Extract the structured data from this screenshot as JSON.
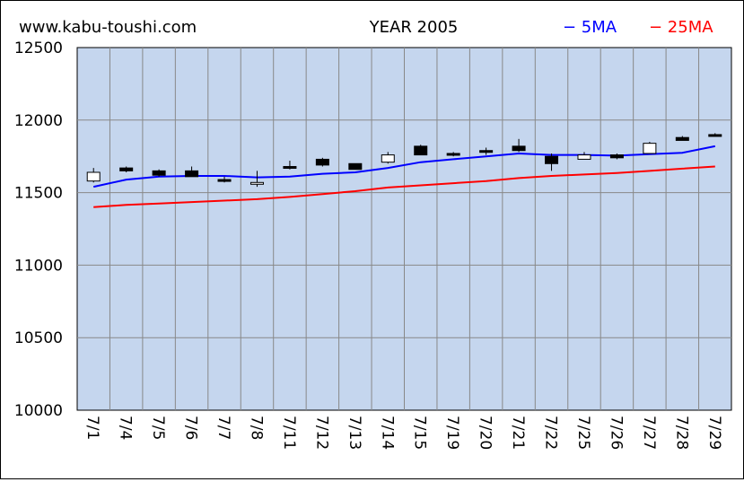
{
  "header": {
    "site": "www.kabu-toushi.com",
    "title": "YEAR 2005",
    "legend_5ma": "− 5MA",
    "legend_25ma": "− 25MA"
  },
  "colors": {
    "plot_bg": "#c5d6ee",
    "grid": "#888888",
    "ma5": "#0000ff",
    "ma25": "#ff0000",
    "up_candle": "#ffffff",
    "down_candle": "#000000"
  },
  "chart_data": {
    "type": "candlestick",
    "title": "YEAR 2005",
    "ylim": [
      10000,
      12500
    ],
    "yticks": [
      10000,
      10500,
      11000,
      11500,
      12000,
      12500
    ],
    "grid": true,
    "legend_placement": "top-right",
    "categories": [
      "7/1",
      "7/4",
      "7/5",
      "7/6",
      "7/7",
      "7/8",
      "7/11",
      "7/12",
      "7/13",
      "7/14",
      "7/15",
      "7/19",
      "7/20",
      "7/21",
      "7/22",
      "7/25",
      "7/26",
      "7/27",
      "7/28",
      "7/29"
    ],
    "candles": [
      {
        "open": 11580,
        "high": 11670,
        "low": 11570,
        "close": 11640
      },
      {
        "open": 11670,
        "high": 11680,
        "low": 11640,
        "close": 11650
      },
      {
        "open": 11650,
        "high": 11660,
        "low": 11610,
        "close": 11620
      },
      {
        "open": 11650,
        "high": 11680,
        "low": 11610,
        "close": 11610
      },
      {
        "open": 11590,
        "high": 11610,
        "low": 11570,
        "close": 11580
      },
      {
        "open": 11570,
        "high": 11650,
        "low": 11540,
        "close": 11570
      },
      {
        "open": 11680,
        "high": 11720,
        "low": 11660,
        "close": 11670
      },
      {
        "open": 11730,
        "high": 11740,
        "low": 11680,
        "close": 11690
      },
      {
        "open": 11700,
        "high": 11700,
        "low": 11660,
        "close": 11660
      },
      {
        "open": 11710,
        "high": 11780,
        "low": 11700,
        "close": 11760
      },
      {
        "open": 11820,
        "high": 11830,
        "low": 11760,
        "close": 11760
      },
      {
        "open": 11770,
        "high": 11780,
        "low": 11750,
        "close": 11760
      },
      {
        "open": 11790,
        "high": 11810,
        "low": 11760,
        "close": 11780
      },
      {
        "open": 11820,
        "high": 11870,
        "low": 11780,
        "close": 11790
      },
      {
        "open": 11750,
        "high": 11770,
        "low": 11650,
        "close": 11700
      },
      {
        "open": 11730,
        "high": 11780,
        "low": 11730,
        "close": 11760
      },
      {
        "open": 11760,
        "high": 11770,
        "low": 11730,
        "close": 11740
      },
      {
        "open": 11770,
        "high": 11850,
        "low": 11770,
        "close": 11840
      },
      {
        "open": 11880,
        "high": 11890,
        "low": 11860,
        "close": 11860
      },
      {
        "open": 11900,
        "high": 11910,
        "low": 11890,
        "close": 11890
      }
    ],
    "series": [
      {
        "name": "5MA",
        "values": [
          11540,
          11590,
          11610,
          11615,
          11615,
          11605,
          11610,
          11630,
          11640,
          11670,
          11710,
          11730,
          11750,
          11770,
          11760,
          11760,
          11755,
          11765,
          11775,
          11820
        ]
      },
      {
        "name": "25MA",
        "values": [
          11400,
          11415,
          11425,
          11435,
          11445,
          11455,
          11470,
          11490,
          11510,
          11535,
          11550,
          11565,
          11580,
          11600,
          11615,
          11625,
          11635,
          11650,
          11665,
          11680
        ]
      }
    ]
  }
}
